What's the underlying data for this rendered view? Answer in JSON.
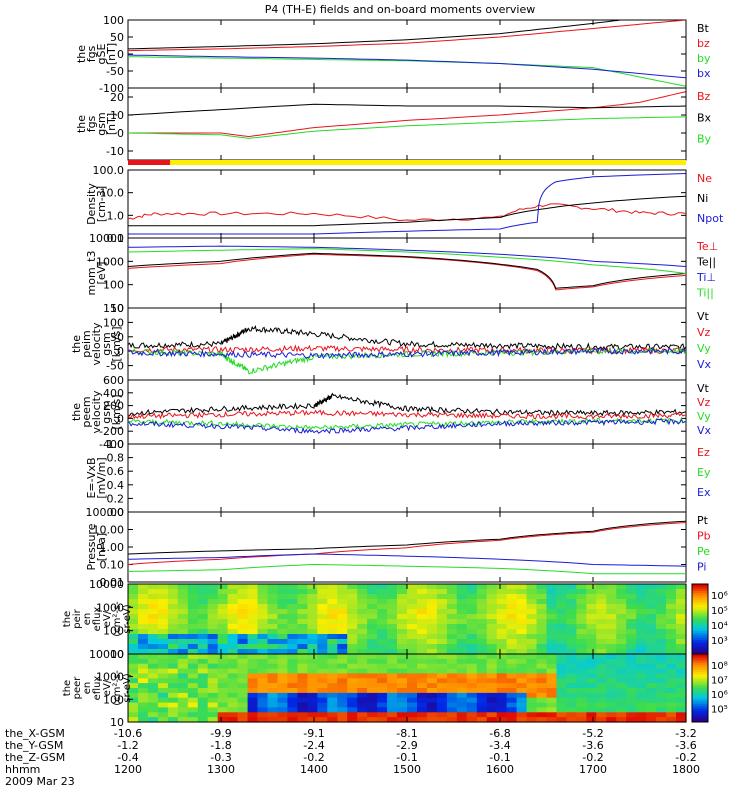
{
  "title": "P4 (TH-E) fields and on-board moments overview",
  "colors": {
    "black": "#000000",
    "red": "#e8141c",
    "green": "#22dd22",
    "blue": "#1b1bd8",
    "yellow": "#ffee00"
  },
  "chart_data": {
    "type": "line",
    "panels": [
      {
        "id": "fgs_gse",
        "ylabel": [
          "the",
          "fgs",
          "gSE",
          "[nT]"
        ],
        "ylim": [
          -100,
          100
        ],
        "yticks": [
          100,
          50,
          0,
          -50,
          -100
        ],
        "series": [
          {
            "name": "Bt",
            "color": "black",
            "x": [
              1200,
              1300,
              1400,
              1500,
              1600,
              1700,
              1730
            ],
            "y": [
              15,
              22,
              30,
              42,
              60,
              90,
              100
            ]
          },
          {
            "name": "bz",
            "color": "red",
            "x": [
              1200,
              1300,
              1400,
              1500,
              1600,
              1700,
              1800
            ],
            "y": [
              10,
              15,
              22,
              32,
              50,
              75,
              100
            ]
          },
          {
            "name": "by",
            "color": "green",
            "x": [
              1200,
              1300,
              1400,
              1500,
              1600,
              1700,
              1800
            ],
            "y": [
              -8,
              -12,
              -16,
              -20,
              -28,
              -40,
              -95
            ]
          },
          {
            "name": "bx",
            "color": "blue",
            "x": [
              1200,
              1300,
              1400,
              1500,
              1600,
              1700,
              1800
            ],
            "y": [
              -3,
              -8,
              -12,
              -18,
              -28,
              -45,
              -70
            ]
          }
        ]
      },
      {
        "id": "fgs_gsm",
        "ylabel": [
          "the",
          "fgs",
          "gsm",
          "[nT]"
        ],
        "ylim": [
          -15,
          25
        ],
        "yticks": [
          20,
          10,
          0,
          -10
        ],
        "series": [
          {
            "name": "Bz",
            "color": "red",
            "x": [
              1200,
              1300,
              1330,
              1400,
              1500,
              1600,
              1700,
              1750,
              1800
            ],
            "y": [
              0,
              0,
              -2,
              3,
              7,
              10,
              14,
              17,
              23
            ]
          },
          {
            "name": "Bx",
            "color": "black",
            "x": [
              1200,
              1300,
              1400,
              1500,
              1600,
              1700,
              1800
            ],
            "y": [
              10,
              13,
              16,
              15,
              15,
              14,
              15
            ]
          },
          {
            "name": "By",
            "color": "green",
            "x": [
              1200,
              1300,
              1330,
              1400,
              1500,
              1600,
              1700,
              1800
            ],
            "y": [
              0,
              -1,
              -3,
              1,
              4,
              6,
              8,
              9
            ]
          }
        ]
      },
      {
        "id": "density",
        "ylabel": [
          "Density",
          "[cm-3]"
        ],
        "log": true,
        "ylim": [
          0.1,
          100
        ],
        "yticks": [
          100,
          10,
          1,
          0.1
        ],
        "yticklabels": [
          "100.0",
          "10.0",
          "1.0",
          "0.1"
        ],
        "series": [
          {
            "name": "Ne",
            "color": "red",
            "x": [
              1200,
              1230,
              1300,
              1400,
              1500,
              1600,
              1650,
              1700,
              1750,
              1800
            ],
            "y": [
              0.7,
              1.2,
              1.2,
              1.2,
              0.6,
              0.8,
              3,
              2,
              1.3,
              1.2
            ]
          },
          {
            "name": "Ni",
            "color": "black",
            "x": [
              1200,
              1300,
              1400,
              1500,
              1600,
              1650,
              1700,
              1800
            ],
            "y": [
              0.35,
              0.35,
              0.35,
              0.5,
              0.8,
              2,
              3.5,
              7
            ]
          },
          {
            "name": "Npot",
            "color": "blue",
            "x": [
              1200,
              1300,
              1400,
              1500,
              1600,
              1640,
              1660,
              1700,
              1800
            ],
            "y": [
              0.15,
              0.15,
              0.15,
              0.2,
              0.25,
              0.5,
              30,
              50,
              70
            ]
          }
        ]
      },
      {
        "id": "moments_t",
        "ylabel": [
          "mom_t3",
          "[eV]"
        ],
        "log": true,
        "ylim": [
          10,
          10000
        ],
        "yticks": [
          10000,
          1000,
          100,
          10
        ],
        "yticklabels": [
          "10000",
          "1000",
          "100",
          "10"
        ],
        "series": [
          {
            "name": "Te⊥",
            "color": "red",
            "x": [
              1200,
              1300,
              1400,
              1500,
              1600,
              1640,
              1660,
              1700,
              1800
            ],
            "y": [
              500,
              800,
              2000,
              1500,
              700,
              400,
              60,
              80,
              250
            ]
          },
          {
            "name": "Te||",
            "color": "black",
            "x": [
              1200,
              1300,
              1400,
              1500,
              1600,
              1640,
              1660,
              1700,
              1800
            ],
            "y": [
              600,
              1000,
              2200,
              1600,
              750,
              450,
              70,
              90,
              300
            ]
          },
          {
            "name": "Ti⊥",
            "color": "blue",
            "x": [
              1200,
              1300,
              1400,
              1500,
              1600,
              1700,
              1800
            ],
            "y": [
              4000,
              4500,
              4000,
              3000,
              2000,
              1000,
              600
            ]
          },
          {
            "name": "Ti||",
            "color": "green",
            "x": [
              1200,
              1300,
              1400,
              1500,
              1600,
              1700,
              1800
            ],
            "y": [
              2500,
              3000,
              3500,
              2500,
              1500,
              700,
              300
            ]
          }
        ]
      },
      {
        "id": "peim_velocity",
        "ylabel": [
          "the",
          "peim",
          "velocity",
          "gsm",
          "[km/s]"
        ],
        "ylim": [
          -100,
          150
        ],
        "yticks": [
          150,
          100,
          50,
          0,
          -50
        ],
        "series": [
          {
            "name": "Vt",
            "color": "black",
            "x": [
              1200,
              1300,
              1330,
              1400,
              1500,
              1600,
              1700,
              1800
            ],
            "y": [
              20,
              25,
              80,
              60,
              25,
              20,
              15,
              15
            ]
          },
          {
            "name": "Vz",
            "color": "red",
            "x": [
              1200,
              1300,
              1400,
              1500,
              1600,
              1700,
              1800
            ],
            "y": [
              5,
              5,
              10,
              5,
              3,
              2,
              2
            ]
          },
          {
            "name": "Vy",
            "color": "green",
            "x": [
              1200,
              1300,
              1330,
              1400,
              1500,
              1600,
              1700,
              1800
            ],
            "y": [
              0,
              -10,
              -70,
              -20,
              -10,
              -5,
              0,
              0
            ]
          },
          {
            "name": "Vx",
            "color": "blue",
            "x": [
              1200,
              1300,
              1400,
              1500,
              1600,
              1700,
              1800
            ],
            "y": [
              -5,
              -10,
              -15,
              -10,
              -5,
              0,
              0
            ]
          }
        ]
      },
      {
        "id": "peem_velocity",
        "ylabel": [
          "the",
          "peem",
          "velocity",
          "gsm",
          "[km/s]"
        ],
        "ylim": [
          -400,
          600
        ],
        "yticks": [
          600,
          400,
          200,
          0,
          -200,
          -400
        ],
        "series": [
          {
            "name": "Vt",
            "color": "black",
            "x": [
              1200,
              1300,
              1400,
              1420,
              1500,
              1600,
              1700,
              1800
            ],
            "y": [
              80,
              150,
              200,
              350,
              150,
              100,
              80,
              100
            ]
          },
          {
            "name": "Vz",
            "color": "red",
            "x": [
              1200,
              1300,
              1400,
              1500,
              1600,
              1700,
              1800
            ],
            "y": [
              30,
              60,
              90,
              60,
              40,
              30,
              50
            ]
          },
          {
            "name": "Vy",
            "color": "green",
            "x": [
              1200,
              1300,
              1400,
              1500,
              1600,
              1700,
              1800
            ],
            "y": [
              -50,
              -80,
              -150,
              -100,
              -60,
              -40,
              -30
            ]
          },
          {
            "name": "Vx",
            "color": "blue",
            "x": [
              1200,
              1300,
              1400,
              1500,
              1600,
              1700,
              1800
            ],
            "y": [
              -80,
              -120,
              -200,
              -150,
              -80,
              -60,
              -50
            ]
          }
        ]
      },
      {
        "id": "efield",
        "ylabel": [
          "E=-VxB",
          "[mV/m]"
        ],
        "ylim": [
          0,
          1
        ],
        "yticks": [
          1.0,
          0.8,
          0.6,
          0.4,
          0.2,
          0.0
        ],
        "yticklabels": [
          "1.0",
          "0.8",
          "0.6",
          "0.4",
          "0.2",
          "0.0"
        ],
        "series": [
          {
            "name": "Ez",
            "color": "red",
            "x": [],
            "y": []
          },
          {
            "name": "Ey",
            "color": "green",
            "x": [],
            "y": []
          },
          {
            "name": "Ex",
            "color": "blue",
            "x": [],
            "y": []
          }
        ]
      },
      {
        "id": "pressure",
        "ylabel": [
          "Pressure",
          "[nPa]"
        ],
        "log": true,
        "ylim": [
          0.01,
          100
        ],
        "yticks": [
          100,
          10,
          1,
          0.1,
          0.01
        ],
        "yticklabels": [
          "100.00",
          "10.00",
          "1.00",
          "0.10",
          "0.01"
        ],
        "series": [
          {
            "name": "Pt",
            "color": "black",
            "x": [
              1200,
              1300,
              1400,
              1500,
              1600,
              1700,
              1800
            ],
            "y": [
              0.4,
              0.6,
              0.8,
              1.3,
              2.8,
              8,
              30
            ]
          },
          {
            "name": "Pb",
            "color": "red",
            "x": [
              1200,
              1300,
              1400,
              1500,
              1600,
              1700,
              1800
            ],
            "y": [
              0.1,
              0.2,
              0.4,
              0.9,
              2.4,
              7,
              25
            ]
          },
          {
            "name": "Pe",
            "color": "green",
            "x": [
              1200,
              1300,
              1400,
              1500,
              1600,
              1700,
              1800
            ],
            "y": [
              0.04,
              0.05,
              0.1,
              0.08,
              0.06,
              0.03,
              0.03
            ]
          },
          {
            "name": "Pi",
            "color": "blue",
            "x": [
              1200,
              1300,
              1400,
              1500,
              1600,
              1700,
              1800
            ],
            "y": [
              0.2,
              0.25,
              0.4,
              0.3,
              0.2,
              0.1,
              0.08
            ]
          }
        ]
      }
    ],
    "spectrograms": [
      {
        "id": "peir_en_eflux",
        "ylabel": [
          "the",
          "peir",
          "en",
          "eflux",
          "eV/",
          "(cm²-s-",
          "sr-eV)"
        ],
        "ylim": [
          10,
          10000
        ],
        "yticks": [
          10000,
          1000,
          100,
          10
        ],
        "yticklabels": [
          "10000",
          "1000",
          "100",
          "10"
        ],
        "colorbar": {
          "ticks": [
            "10⁶",
            "10⁵",
            "10⁴",
            "10³"
          ]
        }
      },
      {
        "id": "peer_en_eflux",
        "ylabel": [
          "the",
          "peer",
          "en",
          "eflux",
          "eV/",
          "(cm²-s-",
          "sr-eV)"
        ],
        "ylim": [
          10,
          10000
        ],
        "yticks": [
          10000,
          1000,
          100,
          10
        ],
        "yticklabels": [
          "10000",
          "1000",
          "100",
          "10"
        ],
        "colorbar": {
          "ticks": [
            "10⁸",
            "10⁷",
            "10⁶",
            "10⁵"
          ]
        }
      }
    ],
    "x_axis": {
      "rows": [
        {
          "label": "the_X-GSM",
          "values": [
            "-10.6",
            "-9.9",
            "-9.1",
            "-8.1",
            "-6.8",
            "-5.2",
            "-3.2"
          ]
        },
        {
          "label": "the_Y-GSM",
          "values": [
            "-1.2",
            "-1.8",
            "-2.4",
            "-2.9",
            "-3.4",
            "-3.6",
            "-3.6"
          ]
        },
        {
          "label": "the_Z-GSM",
          "values": [
            "-0.4",
            "-0.3",
            "-0.2",
            "-0.1",
            "-0.1",
            "-0.2",
            "-0.2"
          ]
        },
        {
          "label": "hhmm",
          "values": [
            "1200",
            "1300",
            "1400",
            "1500",
            "1600",
            "1700",
            "1800"
          ]
        }
      ],
      "date": "2009 Mar 23",
      "range": [
        1200,
        1800
      ]
    }
  }
}
